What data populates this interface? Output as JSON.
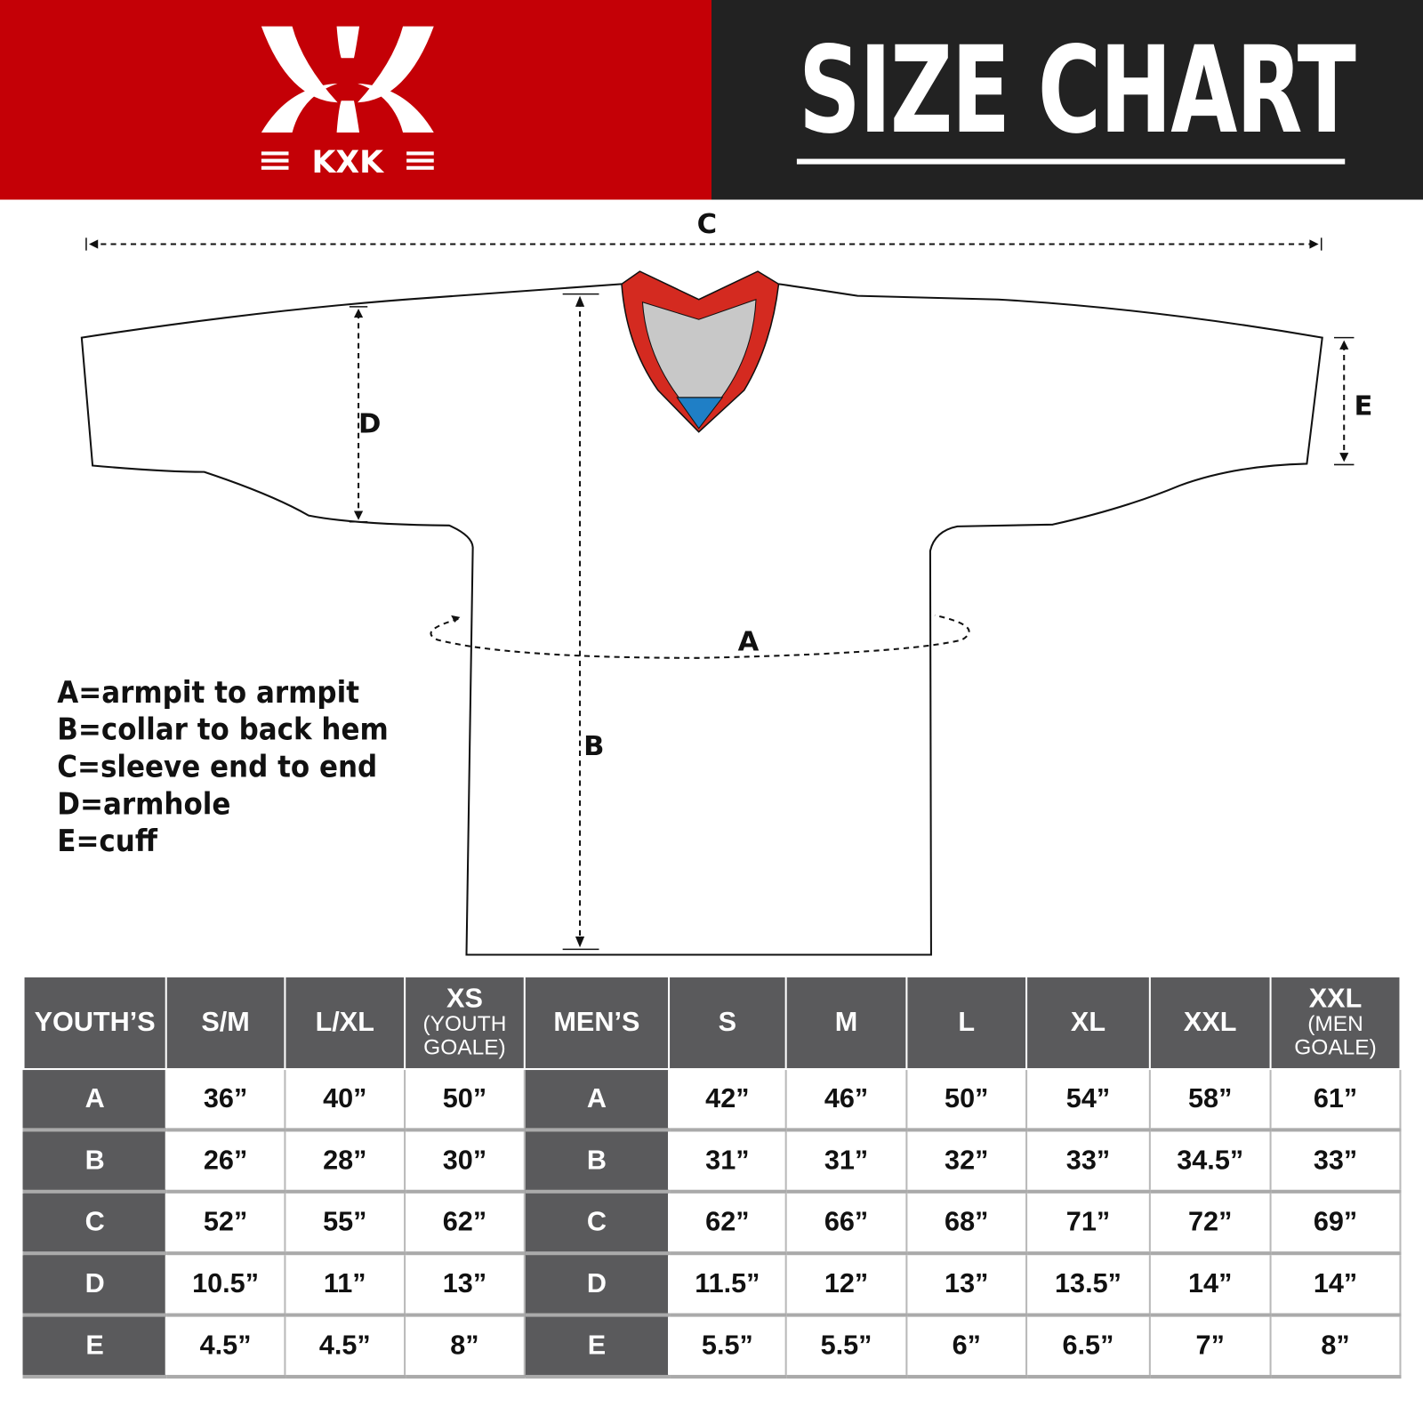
{
  "brand": {
    "logo_text": "KXK",
    "colors": {
      "red": "#c40006",
      "dark": "#222222",
      "table_header": "#5a5a5c"
    }
  },
  "header": {
    "title": "SIZE CHART"
  },
  "diagram": {
    "labels": {
      "a": "A",
      "b": "B",
      "c": "C",
      "d": "D",
      "e": "E"
    }
  },
  "legend": [
    "A=armpit to armpit",
    "B=collar to back hem",
    "C=sleeve end to end",
    "D=armhole",
    "E=cuff"
  ],
  "table": {
    "youth_header": "YOUTH’S",
    "youth_sizes": [
      {
        "main": "S/M"
      },
      {
        "main": "L/XL"
      },
      {
        "main": "XS",
        "sub": "(YOUTH GOALE)"
      }
    ],
    "men_header": "MEN’S",
    "men_sizes": [
      {
        "main": "S"
      },
      {
        "main": "M"
      },
      {
        "main": "L"
      },
      {
        "main": "XL"
      },
      {
        "main": "XXL"
      },
      {
        "main": "XXL",
        "sub": "(MEN GOALE)"
      }
    ],
    "rows": [
      {
        "label": "A",
        "youth": [
          "36”",
          "40”",
          "50”"
        ],
        "men": [
          "42”",
          "46”",
          "50”",
          "54”",
          "58”",
          "61”"
        ]
      },
      {
        "label": "B",
        "youth": [
          "26”",
          "28”",
          "30”"
        ],
        "men": [
          "31”",
          "31”",
          "32”",
          "33”",
          "34.5”",
          "33”"
        ]
      },
      {
        "label": "C",
        "youth": [
          "52”",
          "55”",
          "62”"
        ],
        "men": [
          "62”",
          "66”",
          "68”",
          "71”",
          "72”",
          "69”"
        ]
      },
      {
        "label": "D",
        "youth": [
          "10.5”",
          "11”",
          "13”"
        ],
        "men": [
          "11.5”",
          "12”",
          "13”",
          "13.5”",
          "14”",
          "14”"
        ]
      },
      {
        "label": "E",
        "youth": [
          "4.5”",
          "4.5”",
          "8”"
        ],
        "men": [
          "5.5”",
          "5.5”",
          "6”",
          "6.5”",
          "7”",
          "8”"
        ]
      }
    ]
  }
}
